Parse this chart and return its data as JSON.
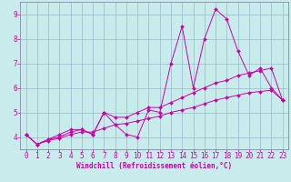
{
  "background_color": "#c8ecec",
  "grid_color": "#99bbcc",
  "line_color": "#cc00aa",
  "spine_color": "#8888aa",
  "xlim": [
    -0.5,
    23.5
  ],
  "ylim": [
    3.5,
    9.5
  ],
  "yticks": [
    4,
    5,
    6,
    7,
    8,
    9
  ],
  "xticks": [
    0,
    1,
    2,
    3,
    4,
    5,
    6,
    7,
    8,
    9,
    10,
    11,
    12,
    13,
    14,
    15,
    16,
    17,
    18,
    19,
    20,
    21,
    22,
    23
  ],
  "xlabel": "Windchill (Refroidissement éolien,°C)",
  "line1_x": [
    0,
    1,
    2,
    3,
    4,
    5,
    6,
    7,
    8,
    9,
    10,
    11,
    12,
    13,
    14,
    15,
    16,
    17,
    18,
    19,
    20,
    21,
    22,
    23
  ],
  "line1_y": [
    4.1,
    3.7,
    3.9,
    4.1,
    4.3,
    4.3,
    4.1,
    5.0,
    4.5,
    4.1,
    4.0,
    5.1,
    5.0,
    7.0,
    8.5,
    6.0,
    8.0,
    9.2,
    8.8,
    7.5,
    6.5,
    6.8,
    6.0,
    5.5
  ],
  "line2_x": [
    0,
    1,
    2,
    3,
    4,
    5,
    6,
    7,
    8,
    9,
    10,
    11,
    12,
    13,
    14,
    15,
    16,
    17,
    18,
    19,
    20,
    21,
    22,
    23
  ],
  "line2_y": [
    4.1,
    3.7,
    3.9,
    4.0,
    4.2,
    4.3,
    4.1,
    5.0,
    4.8,
    4.8,
    5.0,
    5.2,
    5.2,
    5.4,
    5.6,
    5.8,
    6.0,
    6.2,
    6.3,
    6.5,
    6.6,
    6.7,
    6.8,
    5.5
  ],
  "line3_x": [
    0,
    1,
    2,
    3,
    4,
    5,
    6,
    7,
    8,
    9,
    10,
    11,
    12,
    13,
    14,
    15,
    16,
    17,
    18,
    19,
    20,
    21,
    22,
    23
  ],
  "line3_y": [
    4.1,
    3.7,
    3.85,
    3.95,
    4.1,
    4.2,
    4.2,
    4.35,
    4.5,
    4.55,
    4.65,
    4.75,
    4.85,
    5.0,
    5.1,
    5.2,
    5.35,
    5.5,
    5.6,
    5.7,
    5.8,
    5.85,
    5.9,
    5.5
  ],
  "tick_fontsize": 5.5,
  "xlabel_fontsize": 5.5,
  "marker_size": 2.0,
  "line_width": 0.7
}
